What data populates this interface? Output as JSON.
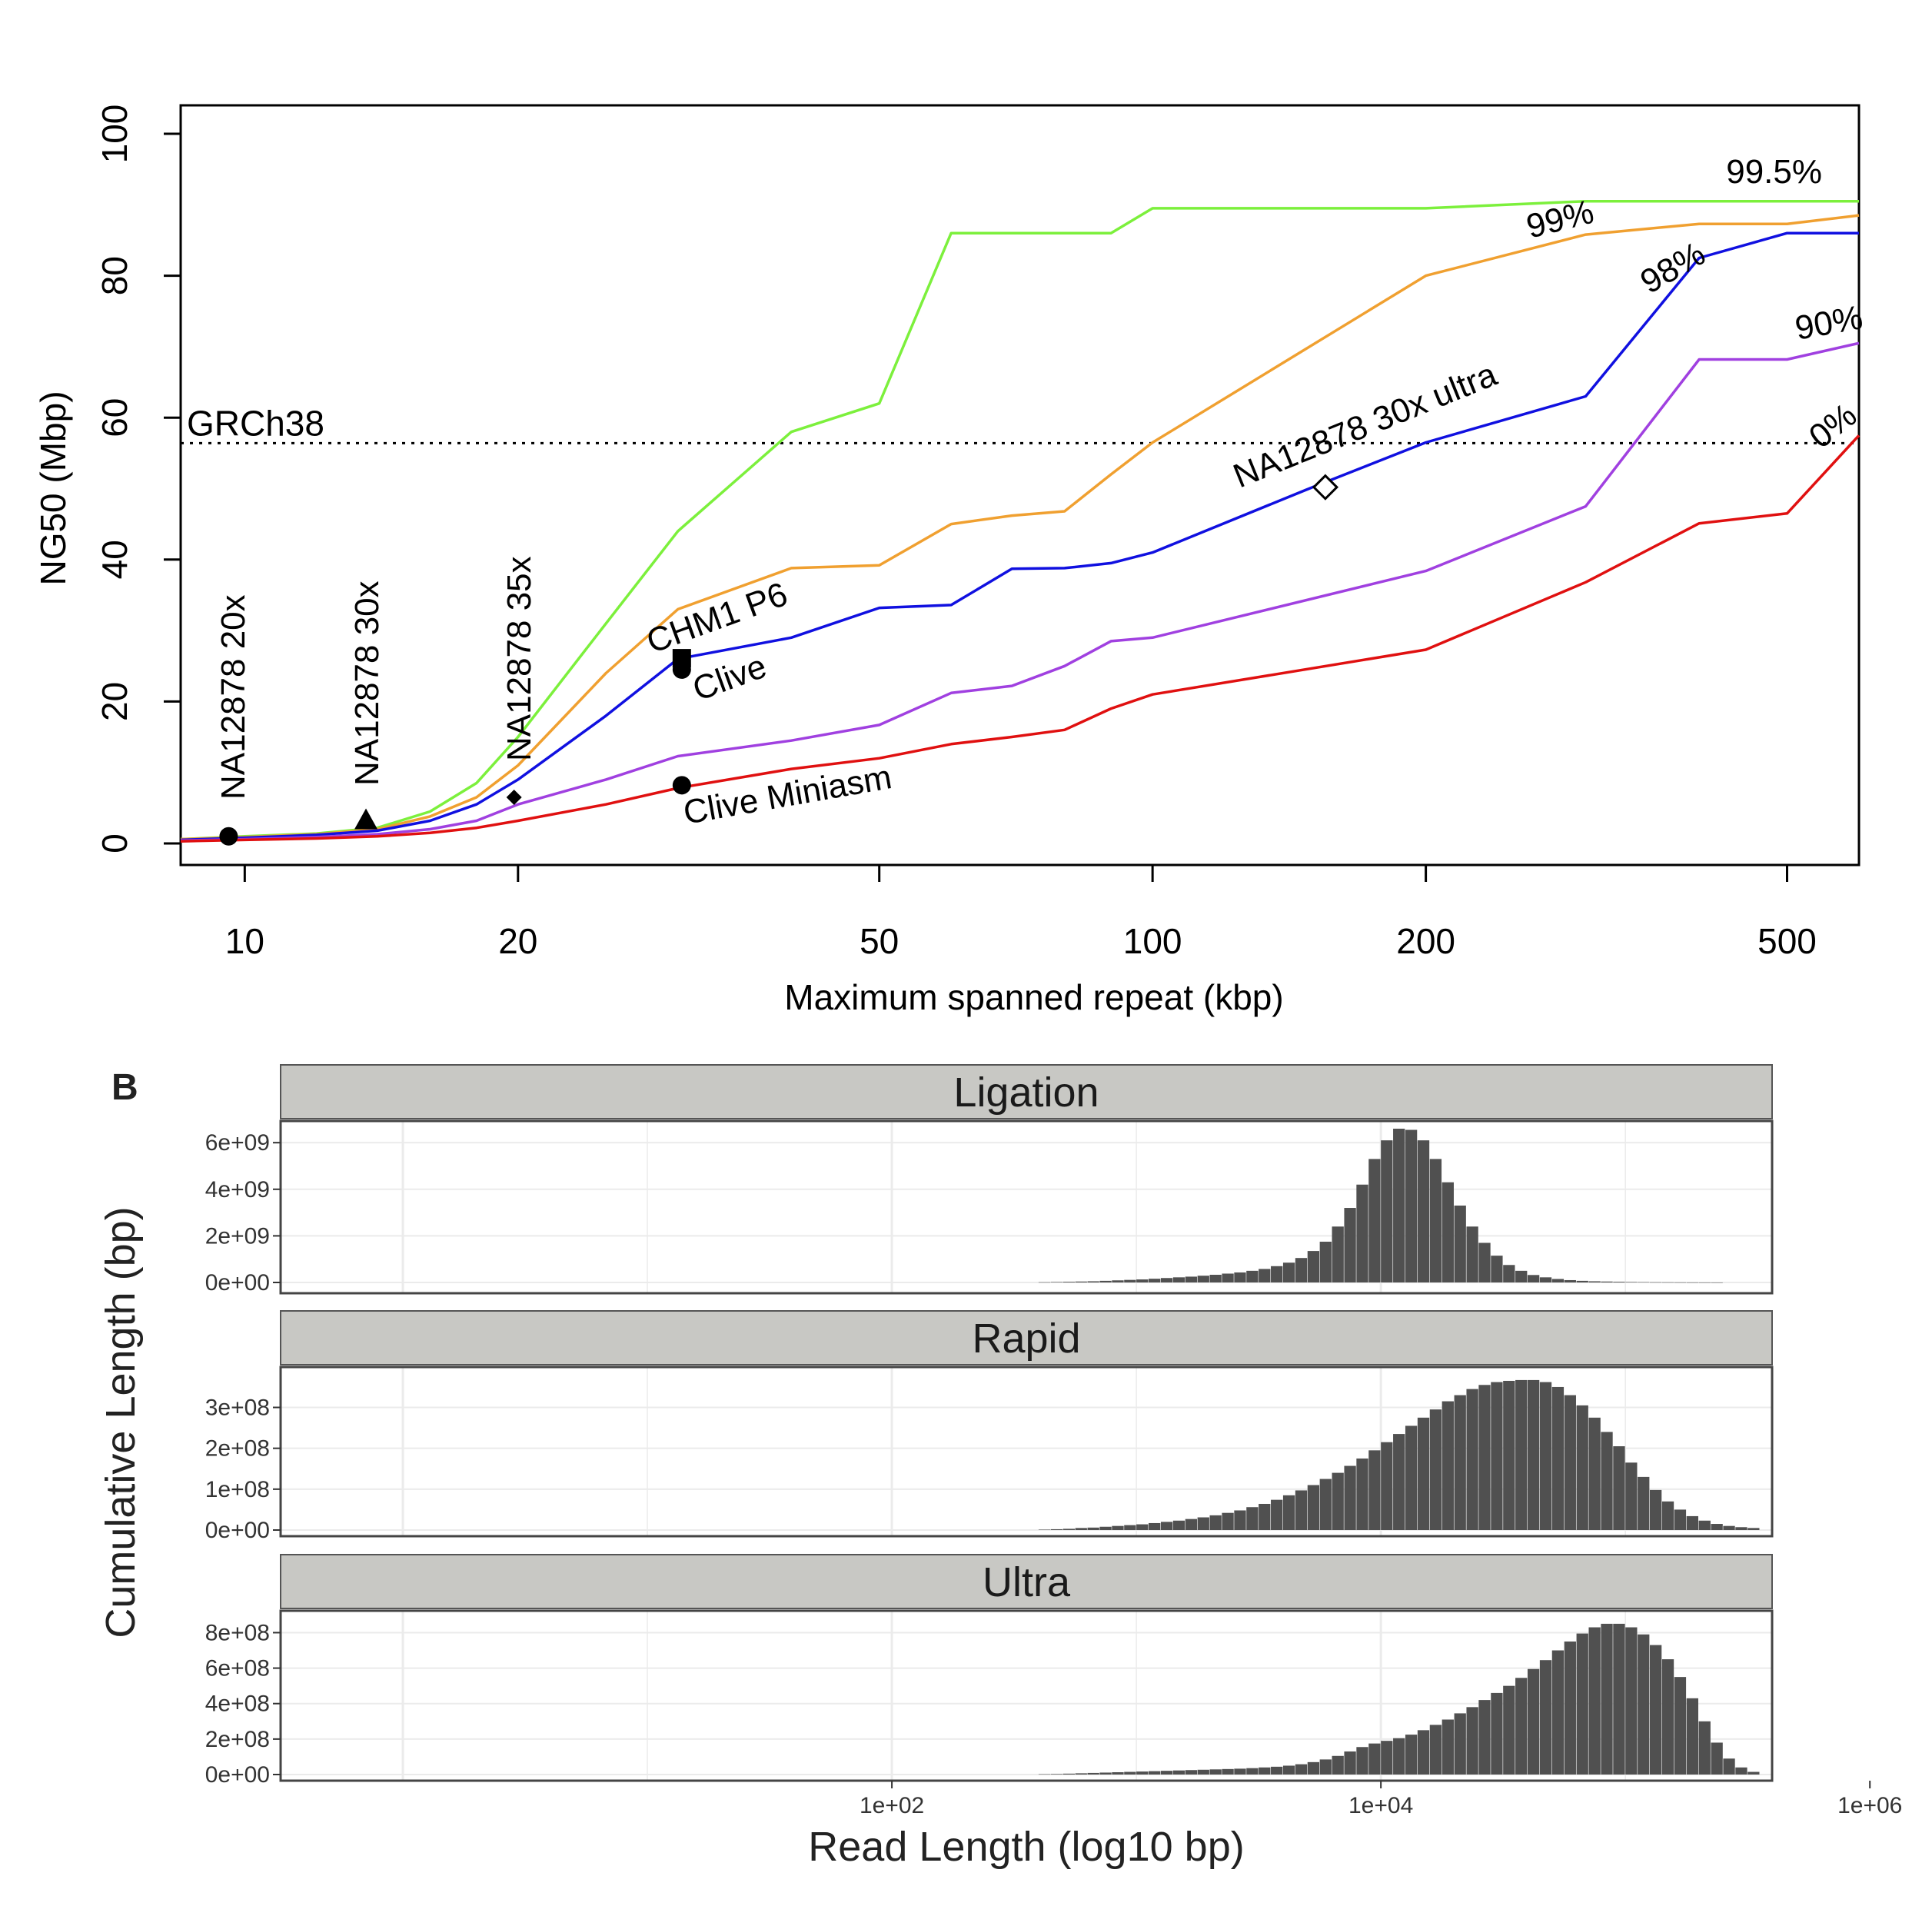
{
  "panel_b_label": "B",
  "chart_data": [
    {
      "type": "line",
      "title": "",
      "xlabel": "Maximum spanned repeat (kbp)",
      "ylabel": "NG50 (Mbp)",
      "xscale": "log",
      "xlim": [
        8.5,
        600
      ],
      "ylim": [
        0,
        100
      ],
      "xticks": [
        10,
        20,
        50,
        100,
        200,
        500
      ],
      "yticks": [
        0,
        20,
        40,
        60,
        80,
        100
      ],
      "grid": false,
      "reference_line": {
        "label": "GRCh38",
        "y": 56.4,
        "style": "dotted"
      },
      "series": [
        {
          "name": "99.5%",
          "color": "#7cf03c",
          "x": [
            8.5,
            10,
            12,
            14,
            16,
            18,
            20,
            25,
            30,
            40,
            50,
            60,
            70,
            80,
            90,
            100,
            200,
            300,
            600
          ],
          "y": [
            0.6,
            1.0,
            1.4,
            2.2,
            4.5,
            8.5,
            15,
            31,
            44,
            58,
            62,
            86,
            86,
            86,
            86,
            89.5,
            89.5,
            90.5,
            90.5
          ]
        },
        {
          "name": "99%",
          "color": "#f0a030",
          "x": [
            8.5,
            10,
            12,
            14,
            16,
            18,
            20,
            25,
            30,
            40,
            50,
            60,
            70,
            80,
            90,
            100,
            200,
            300,
            400,
            500,
            600
          ],
          "y": [
            0.6,
            0.9,
            1.3,
            2.0,
            3.8,
            6.5,
            11,
            24,
            33,
            38.8,
            39.2,
            45,
            46.2,
            46.8,
            52,
            56.5,
            80,
            85.8,
            87.3,
            87.3,
            88.5
          ]
        },
        {
          "name": "98%",
          "color": "#1010e0",
          "x": [
            8.5,
            10,
            12,
            14,
            16,
            18,
            20,
            25,
            30,
            40,
            50,
            60,
            70,
            80,
            90,
            100,
            150,
            200,
            300,
            400,
            500,
            600
          ],
          "y": [
            0.5,
            0.8,
            1.2,
            1.8,
            3.2,
            5.5,
            9,
            18,
            26,
            29,
            33.2,
            33.6,
            38.7,
            38.8,
            39.5,
            41,
            50.2,
            56.5,
            63,
            82.5,
            86,
            86
          ]
        },
        {
          "name": "90%",
          "color": "#a040e0",
          "x": [
            8.5,
            10,
            12,
            14,
            16,
            18,
            20,
            25,
            30,
            40,
            50,
            60,
            70,
            80,
            90,
            100,
            200,
            300,
            400,
            500,
            600
          ],
          "y": [
            0.4,
            0.6,
            0.9,
            1.3,
            2.0,
            3.2,
            5.5,
            9,
            12.3,
            14.5,
            16.7,
            21.2,
            22.2,
            25,
            28.5,
            29,
            38.4,
            47.5,
            68.2,
            68.2,
            70.5
          ]
        },
        {
          "name": "0%",
          "color": "#e01010",
          "x": [
            8.5,
            10,
            12,
            14,
            16,
            18,
            20,
            25,
            30,
            40,
            50,
            60,
            70,
            80,
            90,
            100,
            200,
            300,
            400,
            500,
            600
          ],
          "y": [
            0.3,
            0.5,
            0.7,
            1.0,
            1.5,
            2.2,
            3.2,
            5.5,
            7.8,
            10.5,
            12,
            14,
            15,
            16,
            19,
            21,
            27.3,
            36.8,
            45.1,
            46.5,
            57.5
          ]
        }
      ],
      "annotations": [
        {
          "text": "NA12878 20x",
          "x": 9.6,
          "y": 1.0,
          "marker": "filled-circle"
        },
        {
          "text": "NA12878 30x",
          "x": 13.6,
          "y": 3.3,
          "marker": "filled-triangle"
        },
        {
          "text": "NA12878 35x",
          "x": 19.8,
          "y": 6.5,
          "marker": "filled-diamond"
        },
        {
          "text": "CHM1 P6",
          "x": 30.3,
          "y": 26.1,
          "marker": "filled-square"
        },
        {
          "text": "Clive",
          "x": 30.3,
          "y": 24.5,
          "marker": "filled-circle"
        },
        {
          "text": "Clive Miniasm",
          "x": 30.3,
          "y": 8.2,
          "marker": "filled-circle"
        },
        {
          "text": "NA12878 30x ultra",
          "x": 155,
          "y": 50.2,
          "marker": "open-diamond"
        }
      ]
    },
    {
      "type": "bar",
      "subtype": "faceted-histogram",
      "title": "",
      "xlabel": "Read Length (log10 bp)",
      "ylabel": "Cumulative Length (bp)",
      "xscale": "log10",
      "xlim_log10": [
        -0.5,
        5.6
      ],
      "xtick_labels": [
        "1e+02",
        "1e+04",
        "1e+06"
      ],
      "xtick_positions_log10": [
        2,
        4,
        6
      ],
      "bin_start_log10": 2.6,
      "bin_width_log10": 0.05,
      "panels": [
        {
          "label": "Ligation",
          "ylim": [
            0,
            6600000000.0
          ],
          "ytick_labels": [
            "0e+00",
            "2e+09",
            "4e+09",
            "6e+09"
          ],
          "yticks": [
            0,
            2000000000.0,
            4000000000.0,
            6000000000.0
          ],
          "values": [
            10000000.0,
            20000000.0,
            30000000.0,
            40000000.0,
            50000000.0,
            70000000.0,
            90000000.0,
            110000000.0,
            130000000.0,
            160000000.0,
            190000000.0,
            220000000.0,
            250000000.0,
            290000000.0,
            330000000.0,
            380000000.0,
            430000000.0,
            500000000.0,
            580000000.0,
            700000000.0,
            850000000.0,
            1050000000.0,
            1350000000.0,
            1750000000.0,
            2400000000.0,
            3200000000.0,
            4200000000.0,
            5300000000.0,
            6100000000.0,
            6600000000.0,
            6550000000.0,
            6100000000.0,
            5300000000.0,
            4300000000.0,
            3300000000.0,
            2400000000.0,
            1700000000.0,
            1150000000.0,
            750000000.0,
            500000000.0,
            320000000.0,
            220000000.0,
            150000000.0,
            100000000.0,
            70000000.0,
            50000000.0,
            40000000.0,
            30000000.0,
            20000000.0,
            15000000.0,
            10000000.0,
            8000000.0,
            5000000.0,
            3000000.0,
            2000000.0,
            1000000.0
          ]
        },
        {
          "label": "Rapid",
          "ylim": [
            0,
            380000000.0
          ],
          "ytick_labels": [
            "0e+00",
            "1e+08",
            "2e+08",
            "3e+08"
          ],
          "yticks": [
            0,
            100000000.0,
            200000000.0,
            300000000.0
          ],
          "values": [
            1000000.0,
            2000000.0,
            3000000.0,
            5000000.0,
            6000000.0,
            8000000.0,
            10000000.0,
            12000000.0,
            14000000.0,
            17000000.0,
            20000000.0,
            23000000.0,
            27000000.0,
            31000000.0,
            36000000.0,
            42000000.0,
            48000000.0,
            56000000.0,
            64000000.0,
            74000000.0,
            85000000.0,
            97000000.0,
            110000000.0,
            125000000.0,
            140000000.0,
            157000000.0,
            175000000.0,
            195000000.0,
            215000000.0,
            235000000.0,
            255000000.0,
            275000000.0,
            295000000.0,
            315000000.0,
            330000000.0,
            345000000.0,
            355000000.0,
            362000000.0,
            365000000.0,
            367000000.0,
            367000000.0,
            362000000.0,
            350000000.0,
            330000000.0,
            305000000.0,
            275000000.0,
            240000000.0,
            205000000.0,
            165000000.0,
            130000000.0,
            98000000.0,
            70000000.0,
            50000000.0,
            34000000.0,
            23000000.0,
            15000000.0,
            10000000.0,
            7000000.0,
            5000000.0,
            3000000.0,
            2000000.0,
            1500000.0,
            1000000.0,
            500000.0,
            300000.0
          ]
        },
        {
          "label": "Ultra",
          "ylim": [
            0,
            880000000.0
          ],
          "ytick_labels": [
            "0e+00",
            "2e+08",
            "4e+08",
            "6e+08",
            "8e+08"
          ],
          "yticks": [
            0,
            200000000.0,
            400000000.0,
            600000000.0,
            800000000.0
          ],
          "values": [
            2000000.0,
            3000000.0,
            5000000.0,
            7000000.0,
            9000000.0,
            11000000.0,
            13000000.0,
            15000000.0,
            17000000.0,
            19000000.0,
            21000000.0,
            23000000.0,
            25000000.0,
            27000000.0,
            29000000.0,
            31000000.0,
            33000000.0,
            36000000.0,
            40000000.0,
            44000000.0,
            50000000.0,
            58000000.0,
            70000000.0,
            85000000.0,
            105000000.0,
            130000000.0,
            155000000.0,
            175000000.0,
            190000000.0,
            205000000.0,
            225000000.0,
            250000000.0,
            280000000.0,
            310000000.0,
            345000000.0,
            380000000.0,
            420000000.0,
            460000000.0,
            500000000.0,
            545000000.0,
            595000000.0,
            645000000.0,
            700000000.0,
            750000000.0,
            795000000.0,
            830000000.0,
            850000000.0,
            850000000.0,
            830000000.0,
            790000000.0,
            730000000.0,
            650000000.0,
            550000000.0,
            430000000.0,
            300000000.0,
            180000000.0,
            90000000.0,
            40000000.0,
            15000000.0,
            5000000.0,
            2000000.0
          ]
        }
      ]
    }
  ]
}
